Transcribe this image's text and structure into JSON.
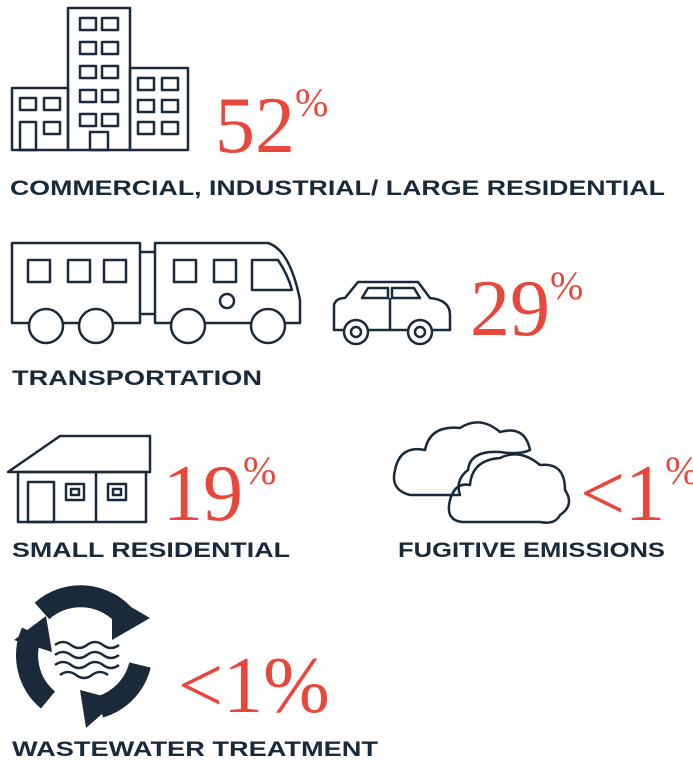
{
  "items": [
    {
      "label": "COMMERCIAL, INDUSTRIAL/ LARGE RESIDENTIAL",
      "value": "52",
      "unit": "%"
    },
    {
      "label": "TRANSPORTATION",
      "value": "29",
      "unit": "%"
    },
    {
      "label": "SMALL RESIDENTIAL",
      "value": "19",
      "unit": "%"
    },
    {
      "label": "FUGITIVE EMISSIONS",
      "value": "<1",
      "unit": "%"
    },
    {
      "label": "WASTEWATER TREATMENT",
      "value": "<1%"
    }
  ]
}
